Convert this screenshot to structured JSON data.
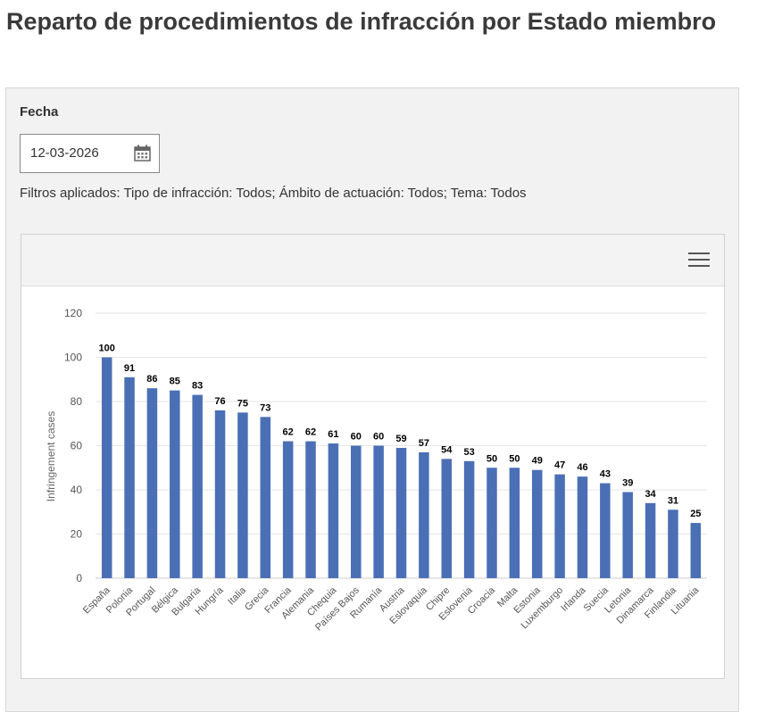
{
  "page": {
    "title": "Reparto de procedimientos de infracción por Estado miembro"
  },
  "filter_panel": {
    "date_label": "Fecha",
    "date_value": "12-03-2026",
    "applied_filters": "Filtros aplicados: Tipo de infracción: Todos; Ámbito de actuación: Todos; Tema: Todos"
  },
  "icons": {
    "calendar": "calendar-icon",
    "menu": "hamburger-menu-icon"
  },
  "colors": {
    "bar": "#4a6fb5",
    "gridline": "#e6e6e6",
    "panel_background": "#f2f2f2"
  },
  "chart_data": {
    "type": "bar",
    "ylabel": "Infringement cases",
    "ylim": [
      0,
      120
    ],
    "yticks": [
      0,
      20,
      40,
      60,
      80,
      100,
      120
    ],
    "grid": true,
    "legend": "none",
    "categories": [
      "España",
      "Polonia",
      "Portugal",
      "Bélgica",
      "Bulgaria",
      "Hungría",
      "Italia",
      "Grecia",
      "Francia",
      "Alemania",
      "Chequia",
      "Países Bajos",
      "Rumanía",
      "Austria",
      "Eslovaquia",
      "Chipre",
      "Eslovenia",
      "Croacia",
      "Malta",
      "Estonia",
      "Luxemburgo",
      "Irlanda",
      "Suecia",
      "Letonia",
      "Dinamarca",
      "Finlandia",
      "Lituania"
    ],
    "values": [
      100,
      91,
      86,
      85,
      83,
      76,
      75,
      73,
      62,
      62,
      61,
      60,
      60,
      59,
      57,
      54,
      53,
      50,
      50,
      49,
      47,
      46,
      43,
      39,
      34,
      31,
      25
    ]
  }
}
